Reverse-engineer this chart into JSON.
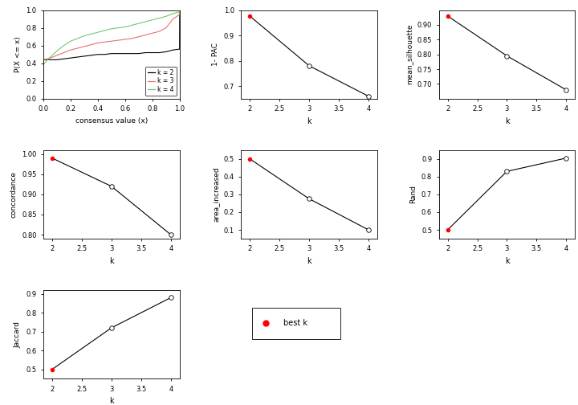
{
  "ecdf": {
    "k2": {
      "x": [
        0.0,
        0.001,
        0.05,
        0.1,
        0.15,
        0.2,
        0.25,
        0.3,
        0.35,
        0.4,
        0.45,
        0.5,
        0.55,
        0.6,
        0.65,
        0.7,
        0.75,
        0.8,
        0.85,
        0.9,
        0.95,
        0.999,
        1.0
      ],
      "y": [
        0.0,
        0.44,
        0.44,
        0.44,
        0.45,
        0.46,
        0.47,
        0.48,
        0.49,
        0.5,
        0.5,
        0.51,
        0.51,
        0.51,
        0.51,
        0.51,
        0.52,
        0.52,
        0.52,
        0.53,
        0.55,
        0.56,
        1.0
      ]
    },
    "k3": {
      "x": [
        0.0,
        0.001,
        0.05,
        0.1,
        0.15,
        0.2,
        0.25,
        0.3,
        0.35,
        0.4,
        0.45,
        0.5,
        0.55,
        0.6,
        0.65,
        0.7,
        0.75,
        0.8,
        0.85,
        0.9,
        0.95,
        0.999,
        1.0
      ],
      "y": [
        0.0,
        0.44,
        0.46,
        0.49,
        0.52,
        0.55,
        0.57,
        0.59,
        0.61,
        0.63,
        0.64,
        0.65,
        0.66,
        0.67,
        0.68,
        0.7,
        0.72,
        0.74,
        0.76,
        0.8,
        0.9,
        0.95,
        1.0
      ]
    },
    "k4": {
      "x": [
        0.0,
        0.001,
        0.05,
        0.1,
        0.15,
        0.2,
        0.25,
        0.3,
        0.35,
        0.4,
        0.45,
        0.5,
        0.55,
        0.6,
        0.65,
        0.7,
        0.75,
        0.8,
        0.85,
        0.9,
        0.95,
        0.999,
        1.0
      ],
      "y": [
        0.0,
        0.39,
        0.47,
        0.54,
        0.6,
        0.65,
        0.68,
        0.71,
        0.73,
        0.75,
        0.77,
        0.79,
        0.8,
        0.81,
        0.83,
        0.85,
        0.87,
        0.89,
        0.91,
        0.93,
        0.96,
        0.98,
        1.0
      ]
    }
  },
  "one_pac": {
    "k": [
      2,
      3,
      4
    ],
    "y": [
      0.976,
      0.78,
      0.66
    ],
    "best_k_idx": 0,
    "ylim": [
      0.65,
      1.0
    ],
    "yticks": [
      0.7,
      0.8,
      0.9,
      1.0
    ],
    "ylabel": "1- PAC"
  },
  "mean_silhouette": {
    "k": [
      2,
      3,
      4
    ],
    "y": [
      0.93,
      0.795,
      0.68
    ],
    "best_k_idx": 0,
    "ylim": [
      0.65,
      0.95
    ],
    "yticks": [
      0.7,
      0.75,
      0.8,
      0.85,
      0.9
    ],
    "ylabel": "mean_silhouette"
  },
  "concordance": {
    "k": [
      2,
      3,
      4
    ],
    "y": [
      0.99,
      0.92,
      0.8
    ],
    "best_k_idx": 0,
    "ylim": [
      0.79,
      1.01
    ],
    "yticks": [
      0.8,
      0.85,
      0.9,
      0.95,
      1.0
    ],
    "ylabel": "concordance"
  },
  "area_increased": {
    "k": [
      2,
      3,
      4
    ],
    "y": [
      0.5,
      0.275,
      0.1
    ],
    "best_k_idx": 0,
    "ylim": [
      0.05,
      0.55
    ],
    "yticks": [
      0.1,
      0.2,
      0.3,
      0.4,
      0.5
    ],
    "ylabel": "area_increased"
  },
  "rand": {
    "k": [
      2,
      3,
      4
    ],
    "y": [
      0.5,
      0.83,
      0.905
    ],
    "best_k_idx": 0,
    "ylim": [
      0.45,
      0.95
    ],
    "yticks": [
      0.5,
      0.6,
      0.7,
      0.8,
      0.9
    ],
    "ylabel": "Rand"
  },
  "jaccard": {
    "k": [
      2,
      3,
      4
    ],
    "y": [
      0.5,
      0.72,
      0.88
    ],
    "best_k_idx": 0,
    "ylim": [
      0.45,
      0.92
    ],
    "yticks": [
      0.5,
      0.6,
      0.7,
      0.8,
      0.9
    ],
    "ylabel": "Jaccard"
  },
  "bg_color": "#ffffff",
  "best_k_color": "#ff0000",
  "ecdf_colors": [
    "#000000",
    "#e87070",
    "#70c870"
  ],
  "ecdf_labels": [
    "k = 2",
    "k = 3",
    "k = 4"
  ]
}
